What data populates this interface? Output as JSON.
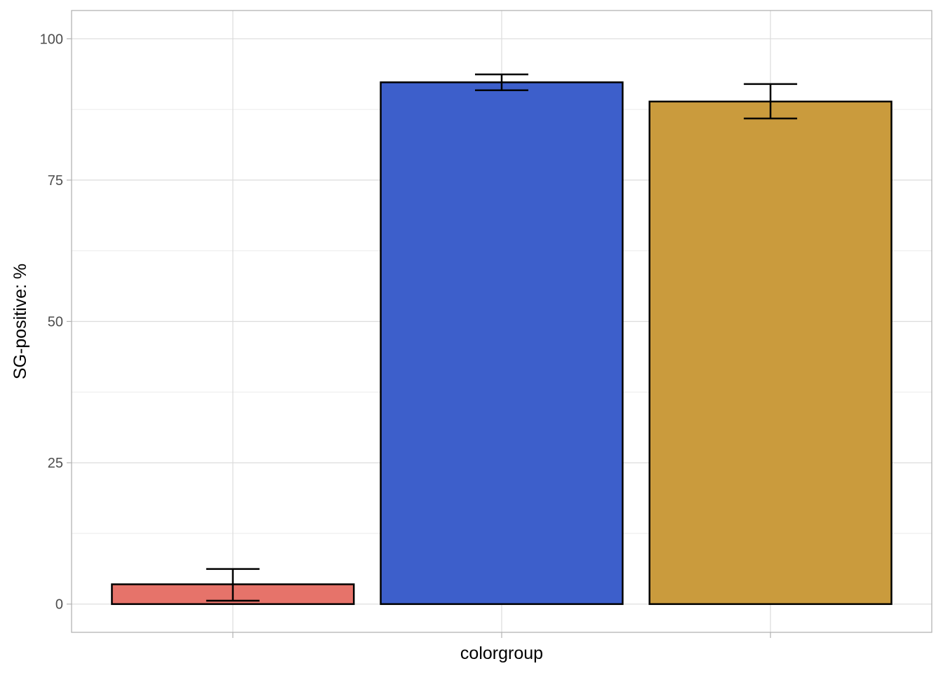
{
  "chart_data": {
    "type": "bar",
    "xlabel": "colorgroup",
    "ylabel": "SG-positive: %",
    "ylim": [
      -5,
      105
    ],
    "yticks": [
      0,
      25,
      50,
      75,
      100
    ],
    "ytick_labels": [
      "0",
      "25",
      "50",
      "75",
      "100"
    ],
    "grid": true,
    "legend": "none",
    "series": [
      {
        "values": [
          3.5,
          92.3,
          88.9
        ],
        "error_low": [
          0.6,
          90.9,
          85.9
        ],
        "error_high": [
          6.2,
          93.7,
          92.0
        ],
        "colors": [
          "#E6736A",
          "#3D5FCB",
          "#CA9B3D"
        ]
      }
    ],
    "bar_outline_color": "#000000",
    "grid_color": "#DCDCDC",
    "panel_border_color": "#B3B3B3"
  }
}
